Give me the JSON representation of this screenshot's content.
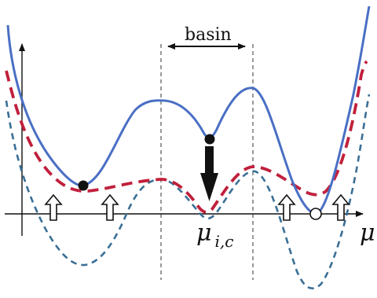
{
  "labels": {
    "basin": "basin",
    "mu_axis": "μ",
    "mu_marker_base": "μ",
    "mu_marker_sub": "i,c"
  },
  "colors": {
    "solid_curve": "#4a6fc4",
    "red_dashed_curve": "#c0203c",
    "blue_dashed_curve": "#3a6f96",
    "axis": "#111111",
    "guide": "#333333"
  },
  "icons": {
    "up_arrows": [
      "up-arrow-icon",
      "up-arrow-icon",
      "up-arrow-icon",
      "up-arrow-icon"
    ],
    "down_arrow": "down-arrow-icon",
    "filled_dot": "filled-dot-icon",
    "open_dot": "open-dot-icon"
  }
}
